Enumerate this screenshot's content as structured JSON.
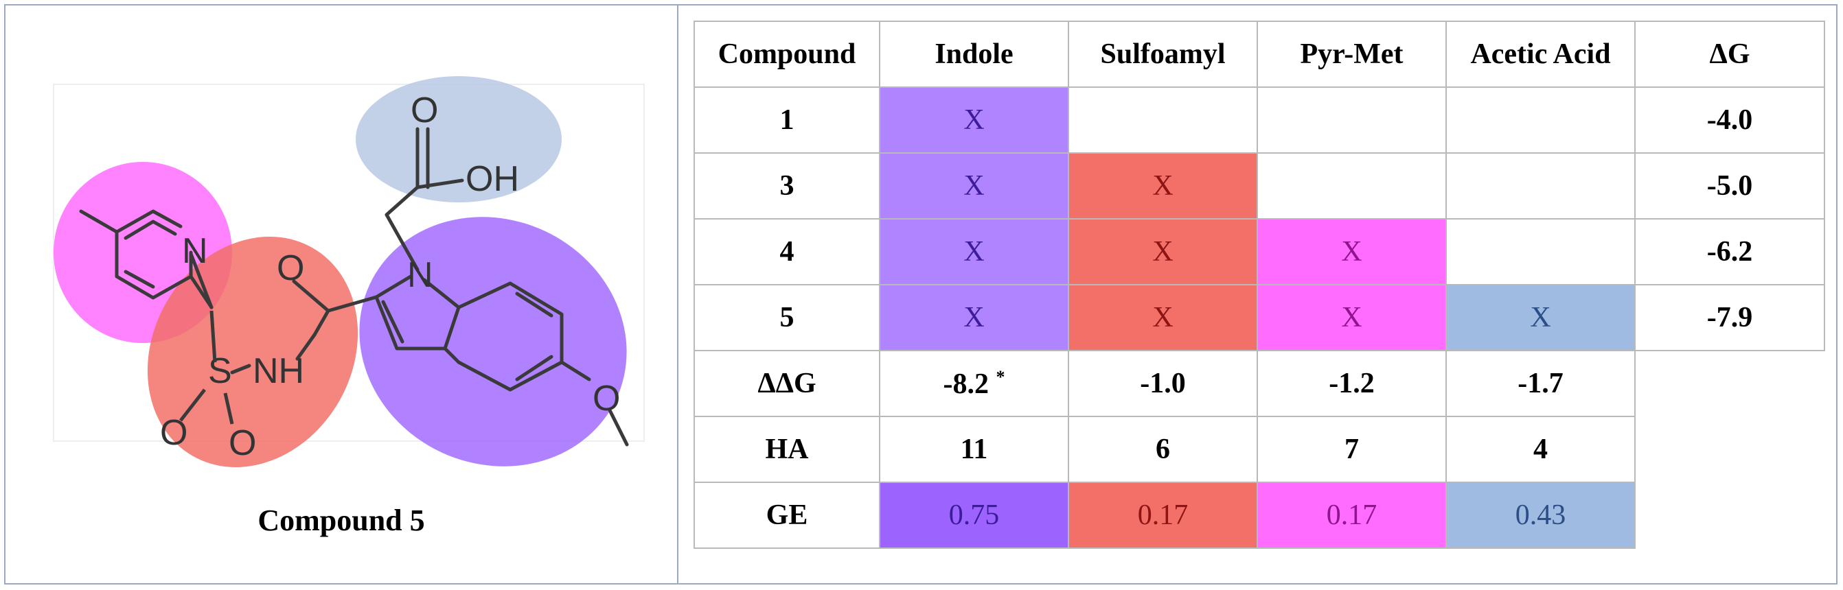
{
  "figure": {
    "caption": "Compound 5",
    "structure_labels": {
      "carbonyl_o": "O",
      "hydroxyl": "OH",
      "pyridine_n": "N",
      "amide_o": "O",
      "indole_n": "N",
      "sulfonyl_s": "S",
      "sulfonyl_nh": "NH",
      "sulfonyl_o1": "O",
      "sulfonyl_o2": "O",
      "methoxy_o": "O"
    },
    "colors": {
      "indole": "#b084ff",
      "sulfoamyl": "#f27068",
      "pyr_met": "#ff6cff",
      "acetic_acid": "#9fbbe2"
    }
  },
  "table": {
    "headers": [
      "Compound",
      "Indole",
      "Sulfoamyl",
      "Pyr-Met",
      "Acetic Acid",
      "ΔG"
    ],
    "rows": [
      {
        "compound": "1",
        "indole": "X",
        "sulfoamyl": "",
        "pyr_met": "",
        "acetic_acid": "",
        "dg": "-4.0"
      },
      {
        "compound": "3",
        "indole": "X",
        "sulfoamyl": "X",
        "pyr_met": "",
        "acetic_acid": "",
        "dg": "-5.0"
      },
      {
        "compound": "4",
        "indole": "X",
        "sulfoamyl": "X",
        "pyr_met": "X",
        "acetic_acid": "",
        "dg": "-6.2"
      },
      {
        "compound": "5",
        "indole": "X",
        "sulfoamyl": "X",
        "pyr_met": "X",
        "acetic_acid": "X",
        "dg": "-7.9"
      }
    ],
    "ddg": {
      "label": "ΔΔG",
      "indole": "-8.2",
      "indole_mark": "*",
      "sulfoamyl": "-1.0",
      "pyr_met": "-1.2",
      "acetic_acid": "-1.7"
    },
    "ha": {
      "label": "HA",
      "indole": "11",
      "sulfoamyl": "6",
      "pyr_met": "7",
      "acetic_acid": "4"
    },
    "ge": {
      "label": "GE",
      "indole": "0.75",
      "sulfoamyl": "0.17",
      "pyr_met": "0.17",
      "acetic_acid": "0.43"
    }
  }
}
